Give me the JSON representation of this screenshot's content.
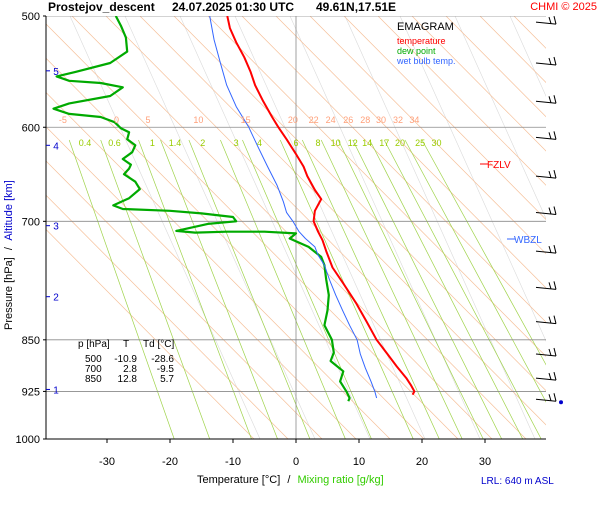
{
  "header": {
    "station": "Prostejov_descent",
    "datetime": "24.07.2025 01:30 UTC",
    "coords": "49.61N,17.51E",
    "copyright": "CHMI © 2025"
  },
  "legend": {
    "title": "EMAGRAM",
    "items": [
      {
        "label": "temperature",
        "color": "#ff0000"
      },
      {
        "label": "dew point",
        "color": "#00aa00"
      },
      {
        "label": "wet bulb temp.",
        "color": "#3366ff"
      }
    ]
  },
  "axes": {
    "y_label_a": "Pressure [hPa]",
    "y_label_sep": "/",
    "y_label_b": "Altitude [km]",
    "x_label_a": "Temperature [°C]",
    "x_label_sep": "/",
    "x_label_b": "Mixing ratio [g/kg]",
    "lrl": "LRL: 640 m ASL"
  },
  "levels": {
    "fzlv": "FZLV",
    "wbzl": "WBZL"
  },
  "table": {
    "headers": [
      "p [hPa]",
      "T",
      "Td [°C]"
    ],
    "rows": [
      [
        "500",
        "-10.9",
        "-28.6"
      ],
      [
        "700",
        "2.8",
        "-9.5"
      ],
      [
        "850",
        "12.8",
        "5.7"
      ]
    ]
  },
  "colors": {
    "temperature": "#ff0000",
    "dewpoint": "#00aa00",
    "wetbulb": "#3366ff",
    "isotherm_label": "#ffa07a",
    "mixing_label": "#99cc00",
    "altitude": "#0000cc"
  },
  "chart_data": {
    "type": "line",
    "title": "EMAGRAM",
    "xlim": [
      -39,
      40
    ],
    "ylim_hpa": [
      1000,
      500
    ],
    "y_log_scale": true,
    "pressure_ticks": [
      500,
      600,
      700,
      850,
      925,
      1000
    ],
    "pressure_tick_labels": [
      "500",
      "600",
      "700",
      "850",
      "925",
      "1000"
    ],
    "temp_ticks": [
      -30,
      -20,
      -10,
      0,
      10,
      20,
      30
    ],
    "temp_tick_labels": [
      "-30",
      "-20",
      "-10",
      "0",
      "10",
      "20",
      "30"
    ],
    "altitude_ticks_km": [
      {
        "label": "1",
        "p": 922
      },
      {
        "label": "2",
        "p": 792
      },
      {
        "label": "3",
        "p": 705
      },
      {
        "label": "4",
        "p": 618
      },
      {
        "label": "5",
        "p": 547
      }
    ],
    "isotherm_labels": [
      {
        "label": "-5",
        "x": -37
      },
      {
        "label": "0",
        "x": -28.5
      },
      {
        "label": "5",
        "x": -23.5
      },
      {
        "label": "10",
        "x": -15.5
      },
      {
        "label": "15",
        "x": -8
      },
      {
        "label": "20",
        "x": -0.5
      },
      {
        "label": "22",
        "x": 2.8
      },
      {
        "label": "24",
        "x": 5.5
      },
      {
        "label": "26",
        "x": 8.3
      },
      {
        "label": "28",
        "x": 11
      },
      {
        "label": "30",
        "x": 13.5
      },
      {
        "label": "32",
        "x": 16.2
      },
      {
        "label": "34",
        "x": 18.8
      }
    ],
    "mixing_ratio_labels": [
      {
        "label": "0.4",
        "x": -33.5
      },
      {
        "label": "0.6",
        "x": -28.8
      },
      {
        "label": "1",
        "x": -22.8
      },
      {
        "label": "1.4",
        "x": -19.2
      },
      {
        "label": "2",
        "x": -14.8
      },
      {
        "label": "3",
        "x": -9.5
      },
      {
        "label": "4",
        "x": -5.8
      },
      {
        "label": "6",
        "x": 0
      },
      {
        "label": "8",
        "x": 3.5
      },
      {
        "label": "10",
        "x": 6.3
      },
      {
        "label": "12",
        "x": 9
      },
      {
        "label": "14",
        "x": 11.3
      },
      {
        "label": "17",
        "x": 14
      },
      {
        "label": "20",
        "x": 16.5
      },
      {
        "label": "25",
        "x": 19.7
      },
      {
        "label": "30",
        "x": 22.3
      }
    ],
    "series": [
      {
        "name": "temperature",
        "points": [
          [
            -10.9,
            500
          ],
          [
            -10.5,
            510
          ],
          [
            -9.5,
            522
          ],
          [
            -8.2,
            535
          ],
          [
            -7.2,
            548
          ],
          [
            -6.5,
            560
          ],
          [
            -5.2,
            575
          ],
          [
            -3.8,
            590
          ],
          [
            -2.8,
            600
          ],
          [
            -1.5,
            612
          ],
          [
            0,
            627
          ],
          [
            1.2,
            640
          ],
          [
            1.8,
            650
          ],
          [
            3.0,
            665
          ],
          [
            4.0,
            675
          ],
          [
            3.0,
            688
          ],
          [
            2.8,
            700
          ],
          [
            3.5,
            712
          ],
          [
            4.2,
            722
          ],
          [
            4.8,
            735
          ],
          [
            5.8,
            755
          ],
          [
            7.5,
            775
          ],
          [
            9.5,
            800
          ],
          [
            11.2,
            825
          ],
          [
            12.8,
            850
          ],
          [
            14.5,
            870
          ],
          [
            16.0,
            888
          ],
          [
            17.5,
            905
          ],
          [
            18.2,
            915
          ],
          [
            18.8,
            925
          ],
          [
            18.5,
            930
          ]
        ]
      },
      {
        "name": "dew point",
        "points": [
          [
            -28.6,
            500
          ],
          [
            -27.8,
            508
          ],
          [
            -27.0,
            518
          ],
          [
            -26.8,
            530
          ],
          [
            -29.5,
            540
          ],
          [
            -35.0,
            548
          ],
          [
            -38.0,
            552
          ],
          [
            -36.0,
            556
          ],
          [
            -31.0,
            558
          ],
          [
            -27.5,
            562
          ],
          [
            -29.5,
            570
          ],
          [
            -36.0,
            577
          ],
          [
            -38.5,
            582
          ],
          [
            -36.0,
            587
          ],
          [
            -31.0,
            590
          ],
          [
            -28.8,
            595
          ],
          [
            -27.8,
            601
          ],
          [
            -26.5,
            605
          ],
          [
            -26.8,
            612
          ],
          [
            -25.5,
            618
          ],
          [
            -26.0,
            625
          ],
          [
            -27.5,
            632
          ],
          [
            -26.2,
            638
          ],
          [
            -26.5,
            642
          ],
          [
            -27.3,
            648
          ],
          [
            -25.5,
            656
          ],
          [
            -24.8,
            664
          ],
          [
            -26.5,
            674
          ],
          [
            -29.0,
            682
          ],
          [
            -27.5,
            686
          ],
          [
            -20.0,
            688
          ],
          [
            -15.0,
            691
          ],
          [
            -10.0,
            695
          ],
          [
            -9.5,
            700
          ],
          [
            -14.0,
            703
          ],
          [
            -19.0,
            711
          ],
          [
            -16.0,
            713
          ],
          [
            -11.0,
            712
          ],
          [
            -5.0,
            712
          ],
          [
            0.0,
            714
          ],
          [
            -1.0,
            720
          ],
          [
            2.0,
            730
          ],
          [
            4.0,
            742
          ],
          [
            4.5,
            752
          ],
          [
            4.8,
            770
          ],
          [
            5.2,
            790
          ],
          [
            5.0,
            810
          ],
          [
            4.5,
            830
          ],
          [
            5.7,
            850
          ],
          [
            6.0,
            868
          ],
          [
            5.5,
            880
          ],
          [
            7.5,
            895
          ],
          [
            7.0,
            910
          ],
          [
            8.0,
            925
          ],
          [
            8.5,
            935
          ],
          [
            8.3,
            940
          ]
        ]
      },
      {
        "name": "wet bulb temp.",
        "points": [
          [
            -13.7,
            500
          ],
          [
            -13.0,
            520
          ],
          [
            -12.0,
            540
          ],
          [
            -11.0,
            560
          ],
          [
            -9.5,
            580
          ],
          [
            -7.5,
            600
          ],
          [
            -6.0,
            620
          ],
          [
            -4.5,
            640
          ],
          [
            -3.0,
            660
          ],
          [
            -2.0,
            678
          ],
          [
            -1.5,
            690
          ],
          [
            -0.5,
            700
          ],
          [
            0.5,
            712
          ],
          [
            1.5,
            720
          ],
          [
            3.0,
            730
          ],
          [
            3.5,
            740
          ],
          [
            4.5,
            752
          ],
          [
            5.3,
            770
          ],
          [
            6.3,
            790
          ],
          [
            7.4,
            810
          ],
          [
            8.5,
            830
          ],
          [
            9.7,
            850
          ],
          [
            10.2,
            870
          ],
          [
            11.0,
            890
          ],
          [
            11.9,
            910
          ],
          [
            12.5,
            925
          ],
          [
            12.8,
            935
          ]
        ]
      }
    ],
    "wind_barbs_hpa": [
      505,
      540,
      575,
      610,
      650,
      690,
      735,
      780,
      825,
      870,
      905,
      937
    ]
  }
}
